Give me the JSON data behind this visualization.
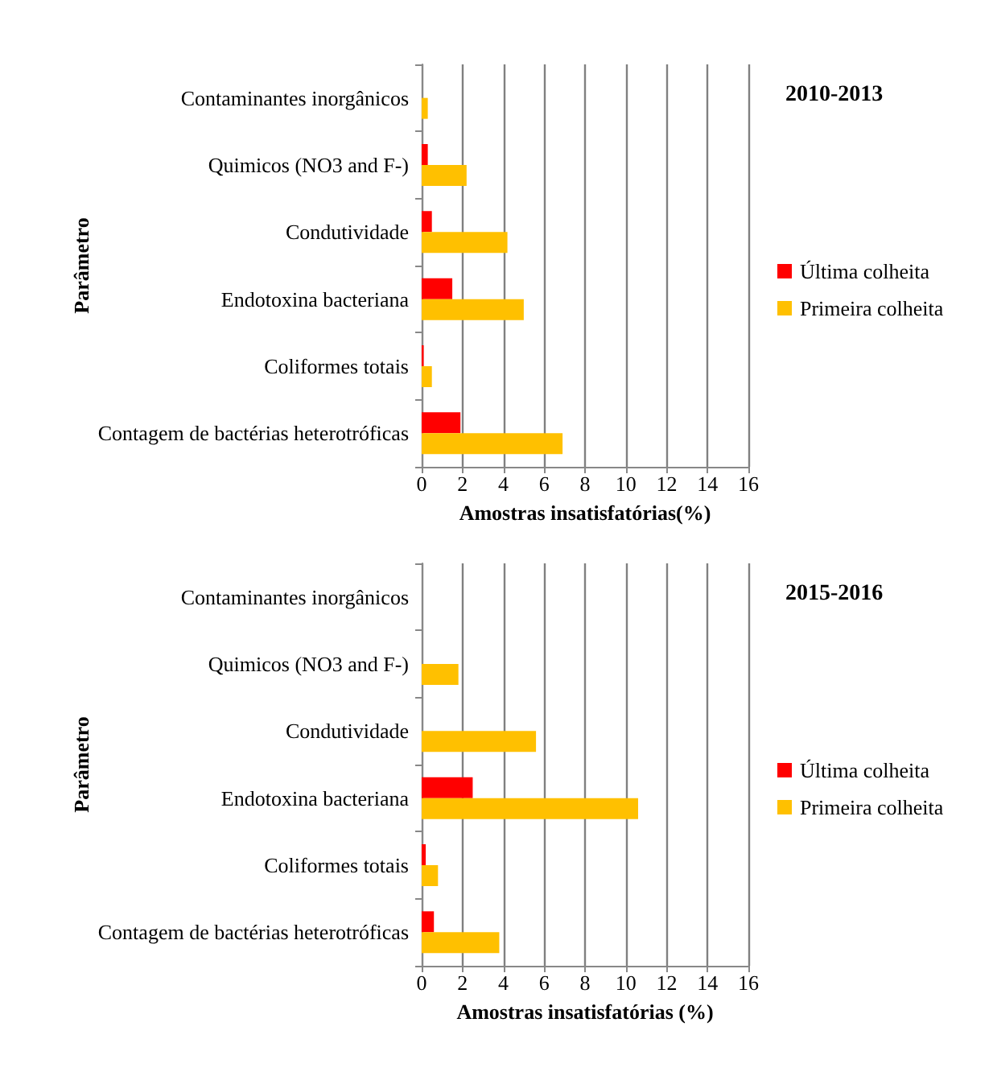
{
  "chart_data": [
    {
      "type": "bar",
      "orientation": "horizontal",
      "annotations": [
        "2010-2013"
      ],
      "xlabel": "Amostras insatisfatórias(%)",
      "ylabel": "Parâmetro",
      "categories": [
        "Contaminantes inorgânicos",
        "Quimicos (NO3 and F-)",
        "Condutividade",
        "Endotoxina bacteriana",
        "Coliformes totais",
        "Contagem de bactérias heterotróficas"
      ],
      "series": [
        {
          "name": "Última colheita",
          "color": "#ff0000",
          "values": [
            0,
            0.3,
            0.5,
            1.5,
            0.1,
            1.9
          ]
        },
        {
          "name": "Primeira colheita",
          "color": "#ffc000",
          "values": [
            0.3,
            2.2,
            4.2,
            5.0,
            0.5,
            6.9
          ]
        }
      ],
      "xlim": [
        0,
        16
      ],
      "xticks": [
        0,
        2,
        4,
        6,
        8,
        10,
        12,
        14,
        16
      ],
      "grid": "x",
      "legend": "right"
    },
    {
      "type": "bar",
      "orientation": "horizontal",
      "annotations": [
        "2015-2016"
      ],
      "xlabel": "Amostras insatisfatórias (%)",
      "ylabel": "Parâmetro",
      "categories": [
        "Contaminantes inorgânicos",
        "Quimicos (NO3 and F-)",
        "Condutividade",
        "Endotoxina bacteriana",
        "Coliformes totais",
        "Contagem de bactérias heterotróficas"
      ],
      "series": [
        {
          "name": "Última colheita",
          "color": "#ff0000",
          "values": [
            0,
            0,
            0,
            2.5,
            0.2,
            0.6
          ]
        },
        {
          "name": "Primeira colheita",
          "color": "#ffc000",
          "values": [
            0,
            1.8,
            5.6,
            10.6,
            0.8,
            3.8
          ]
        }
      ],
      "xlim": [
        0,
        16
      ],
      "xticks": [
        0,
        2,
        4,
        6,
        8,
        10,
        12,
        14,
        16
      ],
      "grid": "x",
      "legend": "right"
    }
  ]
}
